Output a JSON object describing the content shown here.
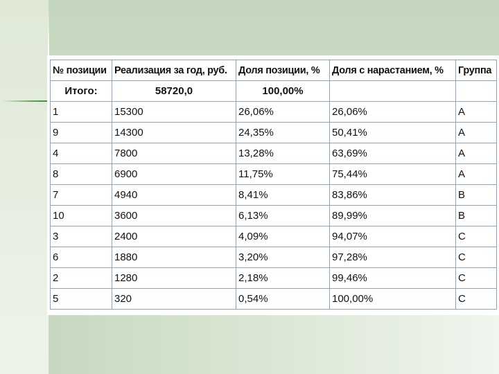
{
  "table": {
    "headers": [
      "№ позиции",
      "Реализация за год, руб.",
      "Доля позиции, %",
      "Доля с нарастанием, %",
      "Группа"
    ],
    "total": {
      "label": "Итого:",
      "sales": "58720,0",
      "share": "100,00%",
      "cumulative": "",
      "group": ""
    },
    "rows": [
      [
        "1",
        "15300",
        "26,06%",
        "26,06%",
        "A"
      ],
      [
        "9",
        "14300",
        "24,35%",
        "50,41%",
        "A"
      ],
      [
        "4",
        "7800",
        "13,28%",
        "63,69%",
        "A"
      ],
      [
        "8",
        "6900",
        "11,75%",
        "75,44%",
        "A"
      ],
      [
        "7",
        "4940",
        "8,41%",
        "83,86%",
        "B"
      ],
      [
        "10",
        "3600",
        "6,13%",
        "89,99%",
        "B"
      ],
      [
        "3",
        "2400",
        "4,09%",
        "94,07%",
        "C"
      ],
      [
        "6",
        "1880",
        "3,20%",
        "97,28%",
        "C"
      ],
      [
        "2",
        "1280",
        "2,18%",
        "99,46%",
        "C"
      ],
      [
        "5",
        "320",
        "0,54%",
        "100,00%",
        "C"
      ]
    ]
  }
}
